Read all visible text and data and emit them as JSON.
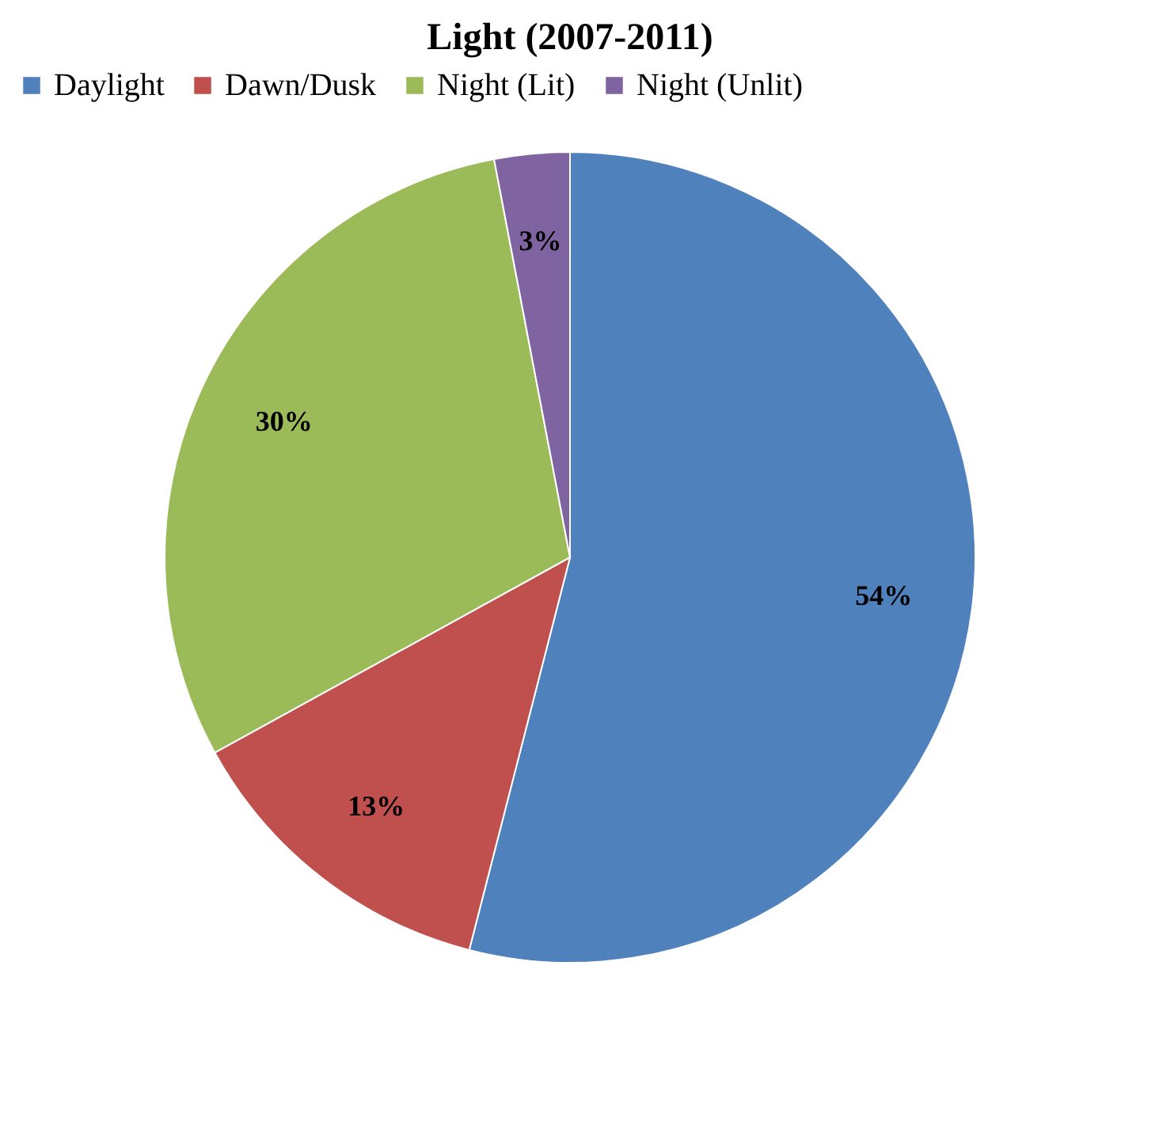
{
  "chart_data": {
    "type": "pie",
    "title": "Light (2007-2011)",
    "categories": [
      "Daylight",
      "Dawn/Dusk",
      "Night (Lit)",
      "Night (Unlit)"
    ],
    "values": [
      54,
      13,
      30,
      3
    ],
    "value_labels": [
      "54%",
      "13%",
      "30%",
      "3%"
    ],
    "colors": [
      "#4f81bd",
      "#c0504d",
      "#9bbb59",
      "#8064a2"
    ],
    "legend": "top"
  }
}
